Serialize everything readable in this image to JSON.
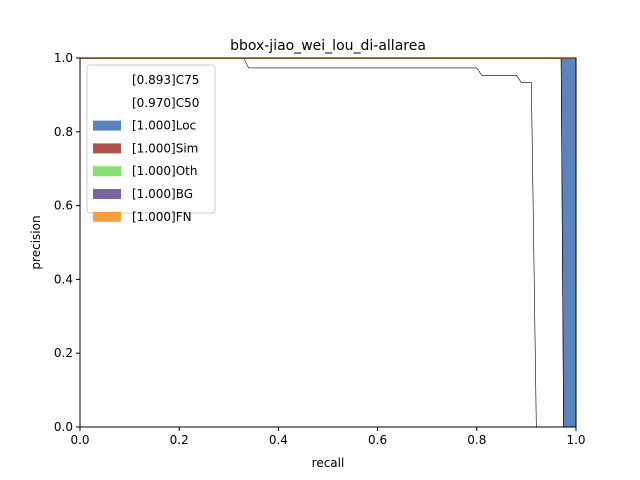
{
  "chart_data": {
    "type": "area",
    "title": "bbox-jiao_wei_lou_di-allarea",
    "xlabel": "recall",
    "ylabel": "precision",
    "xlim": [
      0.0,
      1.0
    ],
    "ylim": [
      0.0,
      1.0
    ],
    "x_ticks": [
      "0.0",
      "0.2",
      "0.4",
      "0.6",
      "0.8",
      "1.0"
    ],
    "y_ticks": [
      "0.0",
      "0.2",
      "0.4",
      "0.6",
      "0.8",
      "1.0"
    ],
    "grid": false,
    "legend_position": "top-left",
    "series": [
      {
        "name": "[0.893]C75",
        "kind": "line",
        "color": "#000000",
        "x": [
          0.0,
          0.33,
          0.34,
          0.8,
          0.81,
          0.88,
          0.89,
          0.9,
          0.91,
          0.92
        ],
        "y": [
          1.0,
          1.0,
          0.973,
          0.973,
          0.953,
          0.953,
          0.933,
          0.933,
          0.933,
          0.0
        ]
      },
      {
        "name": "[0.970]C50",
        "kind": "line",
        "color": "#000000",
        "x": [
          0.0,
          0.97,
          0.975,
          1.0
        ],
        "y": [
          1.0,
          1.0,
          0.0,
          0.0
        ]
      },
      {
        "name": "[1.000]Loc",
        "kind": "area",
        "color": "#5a84c0",
        "polygon": [
          [
            0.97,
            1.0
          ],
          [
            0.975,
            0.0
          ],
          [
            1.0,
            0.0
          ],
          [
            1.0,
            1.0
          ]
        ]
      },
      {
        "name": "[1.000]Sim",
        "kind": "area",
        "color": "#b0524a"
      },
      {
        "name": "[1.000]Oth",
        "kind": "area",
        "color": "#83e16f"
      },
      {
        "name": "[1.000]BG",
        "kind": "area",
        "color": "#7864a2"
      },
      {
        "name": "[1.000]FN",
        "kind": "area",
        "color": "#f4a03c"
      }
    ]
  }
}
